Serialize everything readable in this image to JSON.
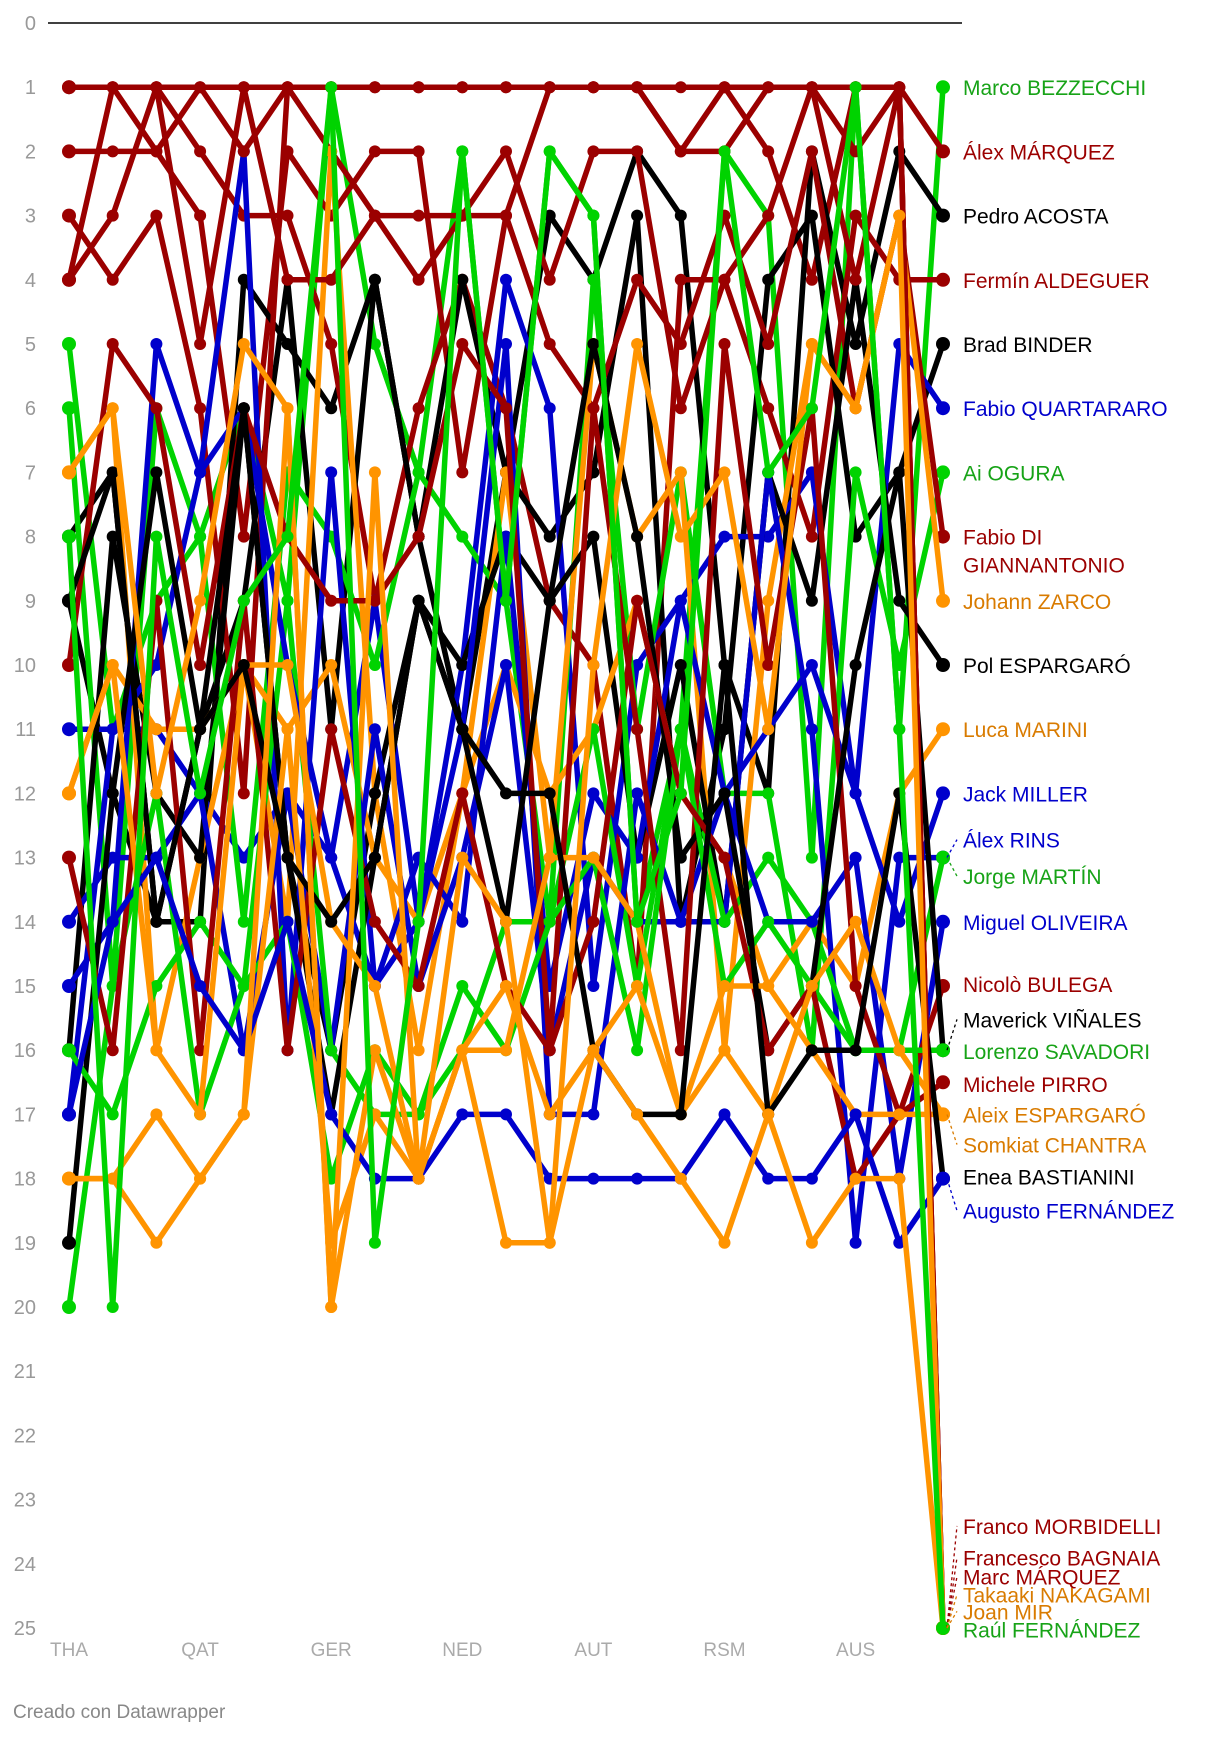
{
  "credit": "Creado con Datawrapper",
  "chart_data": {
    "type": "line",
    "title": "",
    "xlabel": "",
    "ylabel": "",
    "y_reversed": true,
    "ylim": [
      0,
      25
    ],
    "grid": false,
    "races": 21,
    "race_ticks": [
      {
        "race": 1,
        "label": "THA"
      },
      {
        "race": 4,
        "label": "QAT"
      },
      {
        "race": 7,
        "label": "GER"
      },
      {
        "race": 10,
        "label": "NED"
      },
      {
        "race": 13,
        "label": "AUT"
      },
      {
        "race": 16,
        "label": "RSM"
      },
      {
        "race": 19,
        "label": "AUS"
      }
    ],
    "y_ticks": [
      0,
      1,
      2,
      3,
      4,
      5,
      6,
      7,
      8,
      9,
      10,
      11,
      12,
      13,
      14,
      15,
      16,
      17,
      18,
      19,
      20,
      21,
      22,
      23,
      24,
      25
    ],
    "colors": {
      "green": "#00d300",
      "darkred": "#9b0000",
      "black": "#000000",
      "blue": "#0000cc",
      "orange": "#ff9400",
      "label_green": "#17a317",
      "label_orange": "#d97b00"
    },
    "series": [
      {
        "name": "Marco BEZZECCHI",
        "color": "green",
        "label_color": "label_green",
        "values": [
          5,
          11,
          9,
          8,
          6,
          9,
          1,
          5,
          7,
          2,
          9,
          2,
          3,
          14,
          11,
          2,
          3,
          13,
          1,
          11,
          1
        ]
      },
      {
        "name": "Álex MÁRQUEZ",
        "color": "darkred",
        "label_color": "darkred",
        "values": [
          2,
          2,
          2,
          3,
          8,
          2,
          3,
          2,
          2,
          7,
          3,
          1,
          1,
          1,
          2,
          1,
          2,
          4,
          1,
          1,
          2
        ]
      },
      {
        "name": "Pedro ACOSTA",
        "color": "black",
        "label_color": "black",
        "values": [
          9,
          12,
          14,
          14,
          4,
          5,
          6,
          4,
          8,
          11,
          7,
          3,
          4,
          2,
          3,
          10,
          12,
          2,
          5,
          2,
          3
        ]
      },
      {
        "name": "Fermín ALDEGUER",
        "color": "darkred",
        "label_color": "darkred",
        "values": [
          4,
          3,
          1,
          2,
          3,
          3,
          5,
          9,
          6,
          4,
          6,
          9,
          10,
          15,
          4,
          4,
          6,
          8,
          3,
          4,
          4
        ]
      },
      {
        "name": "Brad BINDER",
        "color": "black",
        "label_color": "black",
        "values": [
          8,
          7,
          14,
          11,
          9,
          4,
          11,
          4,
          8,
          4,
          7,
          8,
          7,
          3,
          14,
          11,
          4,
          3,
          8,
          7,
          5
        ]
      },
      {
        "name": "Fabio QUARTARARO",
        "color": "blue",
        "label_color": "blue",
        "values": [
          11,
          11,
          11,
          12,
          13,
          12,
          13,
          9,
          14,
          10,
          4,
          6,
          15,
          10,
          9,
          8,
          8,
          7,
          12,
          5,
          6
        ]
      },
      {
        "name": "Ai OGURA",
        "color": "green",
        "label_color": "label_green",
        "values": [
          6,
          15,
          6,
          8,
          14,
          7,
          8,
          10,
          7,
          8,
          9,
          14,
          4,
          11,
          7,
          12,
          12,
          16,
          7,
          10,
          7
        ]
      },
      {
        "name": "Fabio DI GIANNANTONIO",
        "color": "darkred",
        "label_color": "darkred",
        "values": [
          3,
          4,
          3,
          6,
          12,
          1,
          2,
          3,
          4,
          3,
          3,
          5,
          6,
          4,
          5,
          3,
          5,
          2,
          6,
          3,
          8
        ]
      },
      {
        "name": "Johann ZARCO",
        "color": "orange",
        "label_color": "label_orange",
        "values": [
          7,
          6,
          16,
          13,
          10,
          14,
          2,
          12,
          16,
          12,
          7,
          13,
          5,
          8,
          7,
          16,
          9,
          5,
          6,
          3,
          9
        ]
      },
      {
        "name": "Pol ESPARGARÓ",
        "color": "black",
        "label_color": "black",
        "values": [
          16,
          8,
          12,
          13,
          6,
          13,
          16,
          12,
          9,
          10,
          8,
          9,
          8,
          13,
          10,
          14,
          7,
          9,
          4,
          9,
          10
        ]
      },
      {
        "name": "Luca MARINI",
        "color": "orange",
        "label_color": "label_orange",
        "values": [
          12,
          10,
          11,
          11,
          10,
          11,
          10,
          13,
          14,
          12,
          10,
          12,
          11,
          9,
          12,
          13,
          15,
          14,
          15,
          12,
          11
        ]
      },
      {
        "name": "Jack MILLER",
        "color": "blue",
        "label_color": "blue",
        "values": [
          15,
          14,
          5,
          7,
          2,
          16,
          7,
          15,
          13,
          14,
          8,
          15,
          12,
          13,
          9,
          12,
          11,
          10,
          12,
          14,
          12
        ]
      },
      {
        "name": "Álex RINS",
        "color": "blue",
        "label_color": "blue",
        "values": [
          14,
          13,
          13,
          12,
          16,
          12,
          16,
          11,
          15,
          13,
          10,
          16,
          13,
          14,
          14,
          14,
          7,
          11,
          19,
          13,
          13
        ]
      },
      {
        "name": "Jorge MARTÍN",
        "color": "green",
        "label_color": "label_green",
        "values": [
          20,
          15,
          12,
          17,
          15,
          9,
          16,
          17,
          17,
          16,
          14,
          14,
          11,
          15,
          11,
          14,
          13,
          14,
          16,
          16,
          13
        ]
      },
      {
        "name": "Miguel OLIVEIRA",
        "color": "blue",
        "label_color": "blue",
        "values": [
          17,
          11,
          10,
          7,
          6,
          10,
          13,
          15,
          14,
          11,
          5,
          17,
          17,
          12,
          14,
          12,
          14,
          14,
          13,
          18,
          14
        ]
      },
      {
        "name": "Nicolò BULEGA",
        "color": "darkred",
        "label_color": "darkred",
        "values": [
          10,
          5,
          6,
          10,
          6,
          8,
          9,
          9,
          8,
          5,
          6,
          16,
          6,
          11,
          16,
          5,
          10,
          6,
          15,
          17,
          15
        ]
      },
      {
        "name": "Maverick VIÑALES",
        "color": "black",
        "label_color": "black",
        "values": [
          19,
          12,
          7,
          11,
          6,
          13,
          17,
          13,
          9,
          11,
          14,
          9,
          5,
          8,
          13,
          12,
          16,
          15,
          10,
          7,
          16
        ]
      },
      {
        "name": "Lorenzo SAVADORI",
        "color": "green",
        "label_color": "label_green",
        "values": [
          16,
          17,
          15,
          14,
          15,
          14,
          18,
          16,
          17,
          15,
          16,
          14,
          13,
          16,
          11,
          15,
          14,
          15,
          16,
          16,
          16
        ]
      },
      {
        "name": "Michele PIRRO",
        "color": "darkred",
        "label_color": "darkred",
        "values": [
          13,
          16,
          9,
          16,
          9,
          16,
          11,
          14,
          15,
          12,
          15,
          16,
          14,
          9,
          12,
          13,
          16,
          15,
          18,
          17,
          16.5
        ]
      },
      {
        "name": "Aleix ESPARGARÓ",
        "color": "orange",
        "label_color": "label_orange",
        "values": [
          18,
          18,
          17,
          18,
          17,
          11,
          19,
          17,
          18,
          16,
          15,
          17,
          16,
          15,
          17,
          15,
          15,
          16,
          17,
          17,
          17
        ]
      },
      {
        "name": "Somkiat CHANTRA",
        "color": "orange",
        "label_color": "label_orange",
        "values": [
          12,
          10,
          16,
          17,
          10,
          10,
          14,
          15,
          18,
          16,
          16,
          13,
          13,
          14,
          17,
          16,
          17,
          15,
          14,
          16,
          17
        ]
      },
      {
        "name": "Enea BASTIANINI",
        "color": "black",
        "label_color": "black",
        "values": [
          9,
          7,
          14,
          11,
          10,
          13,
          14,
          13,
          9,
          11,
          12,
          12,
          16,
          17,
          17,
          10,
          17,
          16,
          16,
          12,
          18
        ]
      },
      {
        "name": "Augusto FERNÁNDEZ",
        "color": "blue",
        "label_color": "blue",
        "values": [
          17,
          14,
          13,
          15,
          16,
          14,
          17,
          18,
          18,
          17,
          17,
          18,
          18,
          18,
          18,
          17,
          18,
          18,
          17,
          19,
          18
        ]
      },
      {
        "name": "Franco MORBIDELLI",
        "color": "darkred",
        "label_color": "darkred",
        "values": [
          4,
          1,
          1,
          5,
          1,
          4,
          4,
          3,
          3,
          3,
          2,
          4,
          2,
          2,
          6,
          4,
          3,
          1,
          2,
          1,
          25
        ]
      },
      {
        "name": "Francesco BAGNAIA",
        "color": "darkred",
        "label_color": "darkred",
        "values": [
          1,
          1,
          2,
          1,
          2,
          1,
          1,
          1,
          1,
          1,
          1,
          1,
          1,
          1,
          2,
          2,
          1,
          1,
          4,
          1,
          25
        ]
      },
      {
        "name": "Marc MÁRQUEZ",
        "color": "darkred",
        "label_color": "darkred",
        "values": [
          1,
          1,
          1,
          1,
          1,
          1,
          1,
          1,
          1,
          1,
          1,
          1,
          1,
          1,
          1,
          1,
          1,
          1,
          1,
          1,
          25
        ]
      },
      {
        "name": "Takaaki NAKAGAMI",
        "color": "orange",
        "label_color": "label_orange",
        "values": [
          18,
          18,
          19,
          18,
          17,
          6,
          20,
          16,
          18,
          16,
          19,
          19,
          16,
          17,
          18,
          19,
          17,
          19,
          18,
          18,
          25
        ]
      },
      {
        "name": "Joan MIR",
        "color": "orange",
        "label_color": "label_orange",
        "values": [
          7,
          6,
          12,
          9,
          5,
          6,
          20,
          7,
          18,
          13,
          14,
          19,
          10,
          5,
          8,
          7,
          11,
          5,
          6,
          3,
          25
        ]
      },
      {
        "name": "Raúl FERNÁNDEZ",
        "color": "green",
        "label_color": "label_green",
        "values": [
          8,
          20,
          8,
          12,
          9,
          8,
          1,
          19,
          14,
          2,
          9,
          2,
          3,
          14,
          12,
          2,
          7,
          6,
          1,
          11,
          25
        ]
      }
    ],
    "end_labels": [
      {
        "name": "Marco BEZZECCHI",
        "lines": [
          "Marco BEZZECCHI"
        ],
        "y": 1,
        "ly": 1
      },
      {
        "name": "Álex MÁRQUEZ",
        "lines": [
          "Álex MÁRQUEZ"
        ],
        "y": 2,
        "ly": 2
      },
      {
        "name": "Pedro ACOSTA",
        "lines": [
          "Pedro ACOSTA"
        ],
        "y": 3,
        "ly": 3
      },
      {
        "name": "Fermín ALDEGUER",
        "lines": [
          "Fermín ALDEGUER"
        ],
        "y": 4,
        "ly": 4
      },
      {
        "name": "Brad BINDER",
        "lines": [
          "Brad BINDER"
        ],
        "y": 5,
        "ly": 5
      },
      {
        "name": "Fabio QUARTARARO",
        "lines": [
          "Fabio QUARTARARO"
        ],
        "y": 6,
        "ly": 6
      },
      {
        "name": "Ai OGURA",
        "lines": [
          "Ai OGURA"
        ],
        "y": 7,
        "ly": 7
      },
      {
        "name": "Fabio DI GIANNANTONIO",
        "lines": [
          "Fabio DI",
          "GIANNANTONIO"
        ],
        "y": 8,
        "ly": 8
      },
      {
        "name": "Johann ZARCO",
        "lines": [
          "Johann ZARCO"
        ],
        "y": 9,
        "ly": 9
      },
      {
        "name": "Pol ESPARGARÓ",
        "lines": [
          "Pol ESPARGARÓ"
        ],
        "y": 10,
        "ly": 10
      },
      {
        "name": "Luca MARINI",
        "lines": [
          "Luca MARINI"
        ],
        "y": 11,
        "ly": 11
      },
      {
        "name": "Jack MILLER",
        "lines": [
          "Jack MILLER"
        ],
        "y": 12,
        "ly": 12
      },
      {
        "name": "Álex RINS",
        "lines": [
          "Álex RINS"
        ],
        "y": 13,
        "ly": 12.72
      },
      {
        "name": "Jorge MARTÍN",
        "lines": [
          "Jorge MARTÍN"
        ],
        "y": 13,
        "ly": 13.29
      },
      {
        "name": "Miguel OLIVEIRA",
        "lines": [
          "Miguel OLIVEIRA"
        ],
        "y": 14,
        "ly": 14
      },
      {
        "name": "Nicolò BULEGA",
        "lines": [
          "Nicolò BULEGA"
        ],
        "y": 15,
        "ly": 14.97
      },
      {
        "name": "Maverick VIÑALES",
        "lines": [
          "Maverick VIÑALES"
        ],
        "y": 16,
        "ly": 15.52
      },
      {
        "name": "Lorenzo SAVADORI",
        "lines": [
          "Lorenzo SAVADORI"
        ],
        "y": 16,
        "ly": 16.01
      },
      {
        "name": "Michele PIRRO",
        "lines": [
          "Michele PIRRO"
        ],
        "y": 16.5,
        "ly": 16.53
      },
      {
        "name": "Aleix ESPARGARÓ",
        "lines": [
          "Aleix ESPARGARÓ"
        ],
        "y": 17,
        "ly": 17
      },
      {
        "name": "Somkiat CHANTRA",
        "lines": [
          "Somkiat CHANTRA"
        ],
        "y": 17,
        "ly": 17.47
      },
      {
        "name": "Enea BASTIANINI",
        "lines": [
          "Enea BASTIANINI"
        ],
        "y": 18,
        "ly": 17.97
      },
      {
        "name": "Augusto FERNÁNDEZ",
        "lines": [
          "Augusto FERNÁNDEZ"
        ],
        "y": 18,
        "ly": 18.5
      },
      {
        "name": "Franco MORBIDELLI",
        "lines": [
          "Franco MORBIDELLI"
        ],
        "y": 25,
        "ly": 23.41
      },
      {
        "name": "Francesco BAGNAIA",
        "lines": [
          "Francesco BAGNAIA"
        ],
        "y": 25,
        "ly": 23.9
      },
      {
        "name": "Marc MÁRQUEZ",
        "lines": [
          "Marc MÁRQUEZ"
        ],
        "y": 25,
        "ly": 24.2
      },
      {
        "name": "Takaaki NAKAGAMI",
        "lines": [
          "Takaaki NAKAGAMI"
        ],
        "y": 25,
        "ly": 24.48
      },
      {
        "name": "Joan MIR",
        "lines": [
          "Joan MIR"
        ],
        "y": 25,
        "ly": 24.74
      },
      {
        "name": "Raúl FERNÁNDEZ",
        "lines": [
          "Raúl FERNÁNDEZ"
        ],
        "y": 25,
        "ly": 25.02
      }
    ]
  }
}
